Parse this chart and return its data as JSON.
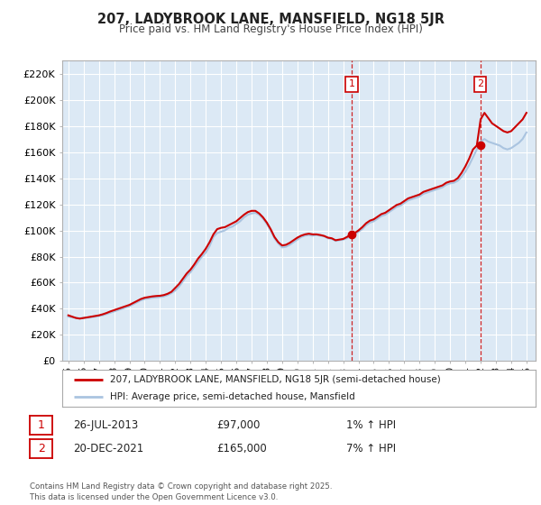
{
  "title": "207, LADYBROOK LANE, MANSFIELD, NG18 5JR",
  "subtitle": "Price paid vs. HM Land Registry's House Price Index (HPI)",
  "plot_bg_color": "#dce9f5",
  "grid_color": "#ffffff",
  "ylim": [
    0,
    230000
  ],
  "yticks": [
    0,
    20000,
    40000,
    60000,
    80000,
    100000,
    120000,
    140000,
    160000,
    180000,
    200000,
    220000
  ],
  "ytick_labels": [
    "£0",
    "£20K",
    "£40K",
    "£60K",
    "£80K",
    "£100K",
    "£120K",
    "£140K",
    "£160K",
    "£180K",
    "£200K",
    "£220K"
  ],
  "xlim_start": 1994.6,
  "xlim_end": 2025.6,
  "xticks": [
    1995,
    1996,
    1997,
    1998,
    1999,
    2000,
    2001,
    2002,
    2003,
    2004,
    2005,
    2006,
    2007,
    2008,
    2009,
    2010,
    2011,
    2012,
    2013,
    2014,
    2015,
    2016,
    2017,
    2018,
    2019,
    2020,
    2021,
    2022,
    2023,
    2024,
    2025
  ],
  "xtick_labels": [
    "95",
    "96",
    "97",
    "98",
    "99",
    "00",
    "01",
    "02",
    "03",
    "04",
    "05",
    "06",
    "07",
    "08",
    "09",
    "10",
    "11",
    "12",
    "13",
    "14",
    "15",
    "16",
    "17",
    "18",
    "19",
    "20",
    "21",
    "22",
    "23",
    "24",
    "25"
  ],
  "hpi_line_color": "#aac4e0",
  "price_line_color": "#cc0000",
  "marker1_date": 2013.57,
  "marker1_price": 97000,
  "marker2_date": 2021.97,
  "marker2_price": 165000,
  "marker_color": "#cc0000",
  "vline_color": "#cc0000",
  "legend_label1": "207, LADYBROOK LANE, MANSFIELD, NG18 5JR (semi-detached house)",
  "legend_label2": "HPI: Average price, semi-detached house, Mansfield",
  "annotation1_date": "26-JUL-2013",
  "annotation1_price": "£97,000",
  "annotation1_hpi": "1% ↑ HPI",
  "annotation2_date": "20-DEC-2021",
  "annotation2_price": "£165,000",
  "annotation2_hpi": "7% ↑ HPI",
  "footer": "Contains HM Land Registry data © Crown copyright and database right 2025.\nThis data is licensed under the Open Government Licence v3.0.",
  "hpi_data_x": [
    1995.0,
    1995.25,
    1995.5,
    1995.75,
    1996.0,
    1996.25,
    1996.5,
    1996.75,
    1997.0,
    1997.25,
    1997.5,
    1997.75,
    1998.0,
    1998.25,
    1998.5,
    1998.75,
    1999.0,
    1999.25,
    1999.5,
    1999.75,
    2000.0,
    2000.25,
    2000.5,
    2000.75,
    2001.0,
    2001.25,
    2001.5,
    2001.75,
    2002.0,
    2002.25,
    2002.5,
    2002.75,
    2003.0,
    2003.25,
    2003.5,
    2003.75,
    2004.0,
    2004.25,
    2004.5,
    2004.75,
    2005.0,
    2005.25,
    2005.5,
    2005.75,
    2006.0,
    2006.25,
    2006.5,
    2006.75,
    2007.0,
    2007.25,
    2007.5,
    2007.75,
    2008.0,
    2008.25,
    2008.5,
    2008.75,
    2009.0,
    2009.25,
    2009.5,
    2009.75,
    2010.0,
    2010.25,
    2010.5,
    2010.75,
    2011.0,
    2011.25,
    2011.5,
    2011.75,
    2012.0,
    2012.25,
    2012.5,
    2012.75,
    2013.0,
    2013.25,
    2013.5,
    2013.75,
    2014.0,
    2014.25,
    2014.5,
    2014.75,
    2015.0,
    2015.25,
    2015.5,
    2015.75,
    2016.0,
    2016.25,
    2016.5,
    2016.75,
    2017.0,
    2017.25,
    2017.5,
    2017.75,
    2018.0,
    2018.25,
    2018.5,
    2018.75,
    2019.0,
    2019.25,
    2019.5,
    2019.75,
    2020.0,
    2020.25,
    2020.5,
    2020.75,
    2021.0,
    2021.25,
    2021.5,
    2021.75,
    2022.0,
    2022.25,
    2022.5,
    2022.75,
    2023.0,
    2023.25,
    2023.5,
    2023.75,
    2024.0,
    2024.25,
    2024.5,
    2024.75,
    2025.0
  ],
  "hpi_data_y": [
    34000,
    33500,
    33000,
    32800,
    33000,
    33200,
    33500,
    34000,
    34500,
    35000,
    36000,
    37000,
    38000,
    39000,
    40000,
    41000,
    42000,
    43500,
    45000,
    46500,
    47500,
    48000,
    48500,
    48800,
    49000,
    49500,
    50500,
    52000,
    54000,
    57000,
    61000,
    65000,
    68000,
    72000,
    76000,
    80000,
    83000,
    88000,
    95000,
    98000,
    99000,
    100000,
    102000,
    103000,
    105000,
    107000,
    110000,
    112000,
    113000,
    113500,
    112000,
    109000,
    105000,
    100000,
    94000,
    90000,
    87000,
    87500,
    89000,
    91000,
    93000,
    95000,
    96000,
    96500,
    96000,
    96500,
    96000,
    95500,
    94000,
    93500,
    92000,
    92500,
    93000,
    94000,
    96000,
    97000,
    99000,
    101000,
    104000,
    106000,
    107000,
    109000,
    111000,
    112000,
    114000,
    116000,
    118000,
    119000,
    121000,
    123000,
    124000,
    125000,
    126000,
    128000,
    129000,
    130000,
    131000,
    132000,
    133000,
    135000,
    136000,
    136500,
    138000,
    141000,
    145000,
    150000,
    156000,
    162000,
    168000,
    170000,
    168000,
    167000,
    166000,
    165000,
    163000,
    162000,
    163000,
    165000,
    167000,
    170000,
    175000
  ],
  "price_data_x": [
    1995.0,
    1995.25,
    1995.5,
    1995.75,
    1996.0,
    1996.25,
    1996.5,
    1996.75,
    1997.0,
    1997.25,
    1997.5,
    1997.75,
    1998.0,
    1998.25,
    1998.5,
    1998.75,
    1999.0,
    1999.25,
    1999.5,
    1999.75,
    2000.0,
    2000.25,
    2000.5,
    2000.75,
    2001.0,
    2001.25,
    2001.5,
    2001.75,
    2002.0,
    2002.25,
    2002.5,
    2002.75,
    2003.0,
    2003.25,
    2003.5,
    2003.75,
    2004.0,
    2004.25,
    2004.5,
    2004.75,
    2005.0,
    2005.25,
    2005.5,
    2005.75,
    2006.0,
    2006.25,
    2006.5,
    2006.75,
    2007.0,
    2007.25,
    2007.5,
    2007.75,
    2008.0,
    2008.25,
    2008.5,
    2008.75,
    2009.0,
    2009.25,
    2009.5,
    2009.75,
    2010.0,
    2010.25,
    2010.5,
    2010.75,
    2011.0,
    2011.25,
    2011.5,
    2011.75,
    2012.0,
    2012.25,
    2012.5,
    2012.75,
    2013.0,
    2013.25,
    2013.5,
    2013.75,
    2014.0,
    2014.25,
    2014.5,
    2014.75,
    2015.0,
    2015.25,
    2015.5,
    2015.75,
    2016.0,
    2016.25,
    2016.5,
    2016.75,
    2017.0,
    2017.25,
    2017.5,
    2017.75,
    2018.0,
    2018.25,
    2018.5,
    2018.75,
    2019.0,
    2019.25,
    2019.5,
    2019.75,
    2020.0,
    2020.25,
    2020.5,
    2020.75,
    2021.0,
    2021.25,
    2021.5,
    2021.75,
    2022.0,
    2022.25,
    2022.5,
    2022.75,
    2023.0,
    2023.25,
    2023.5,
    2023.75,
    2024.0,
    2024.25,
    2024.5,
    2024.75,
    2025.0
  ],
  "price_data_y": [
    35000,
    34000,
    33000,
    32500,
    33000,
    33500,
    34000,
    34500,
    35000,
    35800,
    36800,
    38000,
    39000,
    40000,
    41000,
    42000,
    43000,
    44500,
    46000,
    47500,
    48500,
    49000,
    49500,
    49800,
    50000,
    50500,
    51500,
    53000,
    56000,
    59000,
    63000,
    67000,
    70000,
    74000,
    78500,
    82000,
    86000,
    91000,
    97000,
    101000,
    102000,
    102500,
    104000,
    105500,
    107000,
    109500,
    112000,
    114000,
    115000,
    115000,
    113000,
    110000,
    106000,
    101000,
    95000,
    91000,
    88500,
    89000,
    90500,
    92500,
    94500,
    96000,
    97000,
    97500,
    97000,
    97000,
    96500,
    95800,
    94500,
    94000,
    92500,
    93000,
    93500,
    95000,
    97000,
    98000,
    100000,
    102500,
    105500,
    107500,
    108500,
    110500,
    112500,
    113500,
    115500,
    117500,
    119500,
    120500,
    122500,
    124500,
    125500,
    126500,
    127500,
    129500,
    130500,
    131500,
    132500,
    133500,
    134500,
    136500,
    137500,
    138000,
    140000,
    144000,
    149000,
    155000,
    162000,
    165000,
    185000,
    190000,
    186000,
    182000,
    180000,
    178000,
    176000,
    175000,
    176000,
    179000,
    182000,
    185000,
    190000
  ]
}
